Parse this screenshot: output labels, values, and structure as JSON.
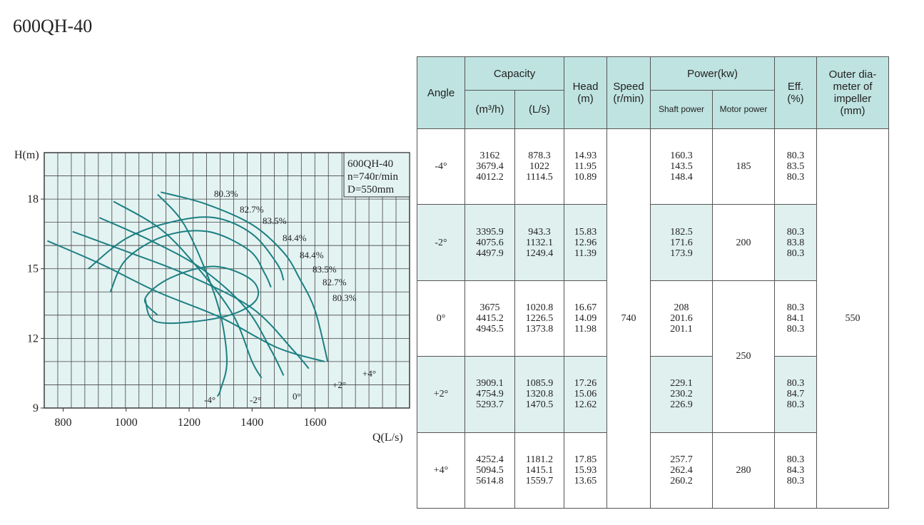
{
  "model_title": "600QH-40",
  "chart_data": {
    "type": "line",
    "xlabel": "Q(L/s)",
    "ylabel": "H(m)",
    "xlim": [
      740,
      1900
    ],
    "ylim": [
      9,
      20
    ],
    "xticks": [
      "800",
      "1000",
      "1200",
      "1400",
      "1600"
    ],
    "yticks": [
      "9",
      "12",
      "15",
      "18"
    ],
    "grid": true,
    "info": [
      "600QH-40",
      "n=740r/min",
      "D=550mm"
    ],
    "series": [
      {
        "name": "-4°",
        "points": [
          [
            1100,
            18.2
          ],
          [
            1180,
            17.0
          ],
          [
            1250,
            15.0
          ],
          [
            1300,
            13.0
          ],
          [
            1320,
            11.0
          ],
          [
            1300,
            9.8
          ],
          [
            1290,
            9.5
          ]
        ]
      },
      {
        "name": "-2°",
        "points": [
          [
            960,
            17.9
          ],
          [
            1110,
            16.7
          ],
          [
            1230,
            15.0
          ],
          [
            1340,
            13.0
          ],
          [
            1400,
            11.0
          ],
          [
            1430,
            10.3
          ]
        ]
      },
      {
        "name": "0°",
        "points": [
          [
            915,
            17.2
          ],
          [
            1080,
            16.2
          ],
          [
            1240,
            15.0
          ],
          [
            1380,
            13.3
          ],
          [
            1460,
            11.5
          ],
          [
            1500,
            10.4
          ]
        ]
      },
      {
        "name": "+2°",
        "points": [
          [
            830,
            16.6
          ],
          [
            1010,
            15.7
          ],
          [
            1200,
            14.7
          ],
          [
            1400,
            13.3
          ],
          [
            1530,
            11.5
          ],
          [
            1580,
            10.7
          ]
        ]
      },
      {
        "name": "+4°",
        "points": [
          [
            750,
            16.2
          ],
          [
            920,
            15.2
          ],
          [
            1100,
            14.0
          ],
          [
            1300,
            12.9
          ],
          [
            1480,
            11.6
          ],
          [
            1630,
            11.0
          ]
        ]
      },
      {
        "name": "80.3%",
        "points": [
          [
            1110,
            18.3
          ],
          [
            1250,
            17.8
          ],
          [
            1400,
            16.9
          ],
          [
            1500,
            15.7
          ],
          [
            1550,
            14.6
          ],
          [
            1600,
            13.2
          ],
          [
            1640,
            11.0
          ]
        ]
      },
      {
        "name": "82.7%",
        "points": [
          [
            880,
            15.0
          ],
          [
            1000,
            16.3
          ],
          [
            1140,
            17.0
          ],
          [
            1280,
            17.2
          ],
          [
            1400,
            16.5
          ],
          [
            1480,
            15.2
          ],
          [
            1500,
            14.5
          ]
        ]
      },
      {
        "name": "83.5%",
        "points": [
          [
            950,
            14.0
          ],
          [
            1000,
            15.4
          ],
          [
            1120,
            16.4
          ],
          [
            1260,
            16.6
          ],
          [
            1390,
            15.8
          ],
          [
            1440,
            14.8
          ],
          [
            1460,
            14.2
          ]
        ]
      },
      {
        "name": "84.4% (inner loop)",
        "points": [
          [
            1100,
            13.0
          ],
          [
            1060,
            13.7
          ],
          [
            1140,
            14.6
          ],
          [
            1280,
            15.1
          ],
          [
            1400,
            14.5
          ],
          [
            1410,
            13.6
          ],
          [
            1300,
            12.9
          ],
          [
            1100,
            12.7
          ],
          [
            1060,
            13.7
          ]
        ]
      }
    ],
    "efficiency_labels": [
      "80.3%",
      "82.7%",
      "83.5%",
      "84.4%",
      "84.4%",
      "83.5%",
      "82.7%",
      "80.3%"
    ],
    "angle_labels": [
      "-4°",
      "-2°",
      "0°",
      "+2°",
      "+4°"
    ]
  },
  "table": {
    "headers": {
      "angle": "Angle",
      "capacity": "Capacity",
      "cap_m3h": "(m³/h)",
      "cap_ls": "(L/s)",
      "head": "Head",
      "head_unit": "(m)",
      "speed": "Speed",
      "speed_unit": "(r/min)",
      "power": "Power(kw)",
      "shaft_power": "Shaft power",
      "motor_power": "Motor power",
      "eff": "Eff.",
      "eff_unit": "(%)",
      "outer_1": "Outer dia-",
      "outer_2": "meter of",
      "outer_3": "impeller",
      "outer_4": "(mm)"
    },
    "speed_value": "740",
    "outer_value": "550",
    "rows": [
      {
        "angle": "-4°",
        "m3h": [
          "3162",
          "3679.4",
          "4012.2"
        ],
        "ls": [
          "878.3",
          "1022",
          "1114.5"
        ],
        "head": [
          "14.93",
          "11.95",
          "10.89"
        ],
        "shaft": [
          "160.3",
          "143.5",
          "148.4"
        ],
        "motor": "185",
        "eff": [
          "80.3",
          "83.5",
          "80.3"
        ]
      },
      {
        "angle": "-2°",
        "m3h": [
          "3395.9",
          "4075.6",
          "4497.9"
        ],
        "ls": [
          "943.3",
          "1132.1",
          "1249.4"
        ],
        "head": [
          "15.83",
          "12.96",
          "11.39"
        ],
        "shaft": [
          "182.5",
          "171.6",
          "173.9"
        ],
        "motor": "200",
        "eff": [
          "80.3",
          "83.8",
          "80.3"
        ]
      },
      {
        "angle": "0°",
        "m3h": [
          "3675",
          "4415.2",
          "4945.5"
        ],
        "ls": [
          "1020.8",
          "1226.5",
          "1373.8"
        ],
        "head": [
          "16.67",
          "14.09",
          "11.98"
        ],
        "shaft": [
          "208",
          "201.6",
          "201.1"
        ],
        "motor": "250",
        "eff": [
          "80.3",
          "84.1",
          "80.3"
        ]
      },
      {
        "angle": "+2°",
        "m3h": [
          "3909.1",
          "4754.9",
          "5293.7"
        ],
        "ls": [
          "1085.9",
          "1320.8",
          "1470.5"
        ],
        "head": [
          "17.26",
          "15.06",
          "12.62"
        ],
        "shaft": [
          "229.1",
          "230.2",
          "226.9"
        ],
        "motor": "250",
        "eff": [
          "80.3",
          "84.7",
          "80.3"
        ]
      },
      {
        "angle": "+4°",
        "m3h": [
          "4252.4",
          "5094.5",
          "5614.8"
        ],
        "ls": [
          "1181.2",
          "1415.1",
          "1559.7"
        ],
        "head": [
          "17.85",
          "15.93",
          "13.65"
        ],
        "shaft": [
          "257.7",
          "262.4",
          "260.2"
        ],
        "motor": "280",
        "eff": [
          "80.3",
          "84.3",
          "80.3"
        ]
      }
    ]
  },
  "colors": {
    "curve": "#1c7f82",
    "grid_bg": "#e3f3f2",
    "header_bg": "#bfe3e1",
    "shade_bg": "#dff0ee"
  }
}
